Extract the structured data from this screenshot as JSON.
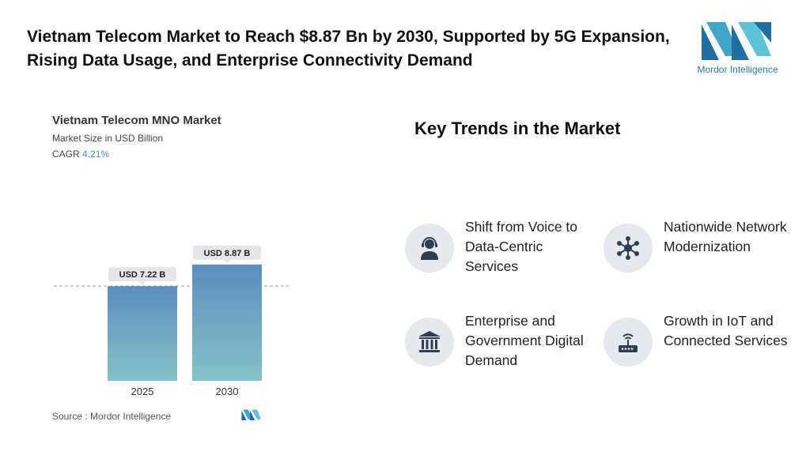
{
  "headline": "Vietnam Telecom Market to Reach $8.87 Bn by 2030, Supported by 5G Expansion, Rising Data Usage, and Enterprise Connectivity Demand",
  "logo": {
    "text": "Mordor Intelligence"
  },
  "chart": {
    "title": "Vietnam Telecom MNO Market",
    "subtitle": "Market Size in USD Billion",
    "cagr_label": "CAGR",
    "cagr_value": "4.21%",
    "source": "Source :  Mordor Intelligence"
  },
  "chart_data": {
    "type": "bar",
    "title": "Vietnam Telecom MNO Market",
    "subtitle": "Market Size in USD Billion",
    "categories": [
      "2025",
      "2030"
    ],
    "values": [
      7.22,
      8.87
    ],
    "data_labels": [
      "USD 7.22 B",
      "USD 8.87 B"
    ],
    "ylim": [
      0,
      10
    ],
    "grid": false,
    "reference_line_at": 7.22,
    "colors": {
      "bar_top": "#5b8dbf",
      "bar_bottom": "#85c3c8"
    }
  },
  "trends": {
    "title": "Key Trends in the Market",
    "items": [
      {
        "label": "Shift from Voice to Data-Centric Services",
        "icon": "headset-agent-icon"
      },
      {
        "label": "Nationwide Network Modernization",
        "icon": "network-hub-icon"
      },
      {
        "label": "Enterprise and Government Digital Demand",
        "icon": "government-building-icon"
      },
      {
        "label": "Growth in IoT and Connected Services",
        "icon": "router-icon"
      }
    ]
  },
  "colors": {
    "icon_dark": "#2f3e55",
    "circle_bg": "#e6e9ee",
    "accent": "#4a90b8"
  }
}
